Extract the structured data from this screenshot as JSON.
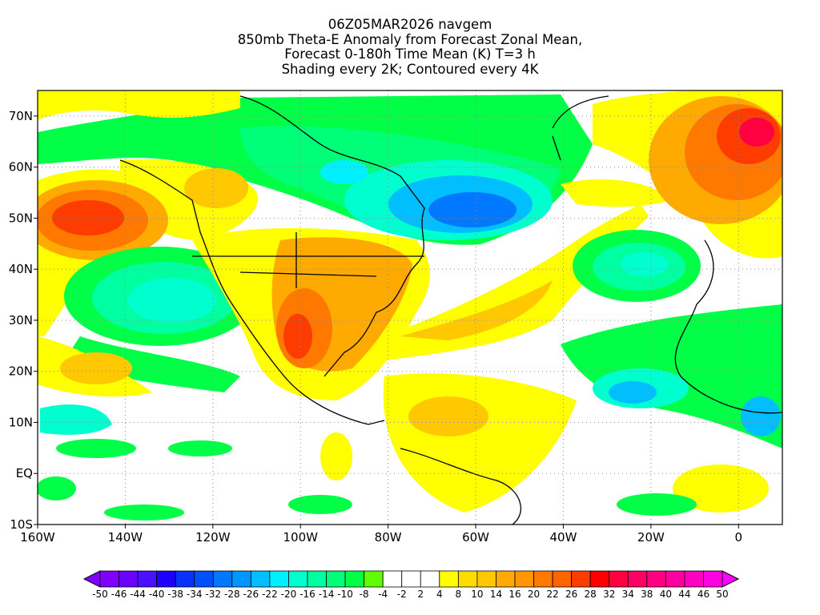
{
  "title": {
    "line1": "06Z05MAR2026 navgem",
    "line2": "850mb Theta-E Anomaly from Forecast Zonal Mean,",
    "line3": "Forecast 0-180h Time Mean (K) T=3 h",
    "line4": "Shading every 2K; Contoured every 4K"
  },
  "axes": {
    "lat_labels": [
      "70N",
      "60N",
      "50N",
      "40N",
      "30N",
      "20N",
      "10N",
      "EQ",
      "10S"
    ],
    "lat_values": [
      70,
      60,
      50,
      40,
      30,
      20,
      10,
      0,
      -10
    ],
    "lon_labels": [
      "160W",
      "140W",
      "120W",
      "100W",
      "80W",
      "60W",
      "40W",
      "20W",
      "0"
    ],
    "lon_values": [
      -160,
      -140,
      -120,
      -100,
      -80,
      -60,
      -40,
      -20,
      0
    ],
    "lat_range": [
      -10,
      75
    ],
    "lon_range": [
      -160,
      10
    ]
  },
  "colorbar": {
    "labels": [
      "-50",
      "-46",
      "-44",
      "-40",
      "-38",
      "-34",
      "-32",
      "-28",
      "-26",
      "-22",
      "-20",
      "-16",
      "-14",
      "-10",
      "-8",
      "-4",
      "-2",
      "2",
      "4",
      "8",
      "10",
      "14",
      "16",
      "20",
      "22",
      "26",
      "28",
      "32",
      "34",
      "38",
      "40",
      "44",
      "46",
      "50"
    ],
    "colors": [
      "#8000ff",
      "#6a00ff",
      "#4a10ff",
      "#1e00ff",
      "#0a32ff",
      "#0050ff",
      "#0078ff",
      "#0096ff",
      "#00beff",
      "#00f0ff",
      "#00ffcf",
      "#00ffa0",
      "#00ff78",
      "#00ff46",
      "#60ff00",
      "#ffffff",
      "#ffffff",
      "#ffffff",
      "#ffff00",
      "#ffdc00",
      "#ffc800",
      "#ffaa00",
      "#ff9600",
      "#ff7800",
      "#ff6400",
      "#ff3c00",
      "#ff0000",
      "#ff0040",
      "#ff0064",
      "#ff0080",
      "#ff00a0",
      "#ff00c0",
      "#ff00e0"
    ],
    "under_color": "#8000ff",
    "over_color": "#ff00ff"
  }
}
